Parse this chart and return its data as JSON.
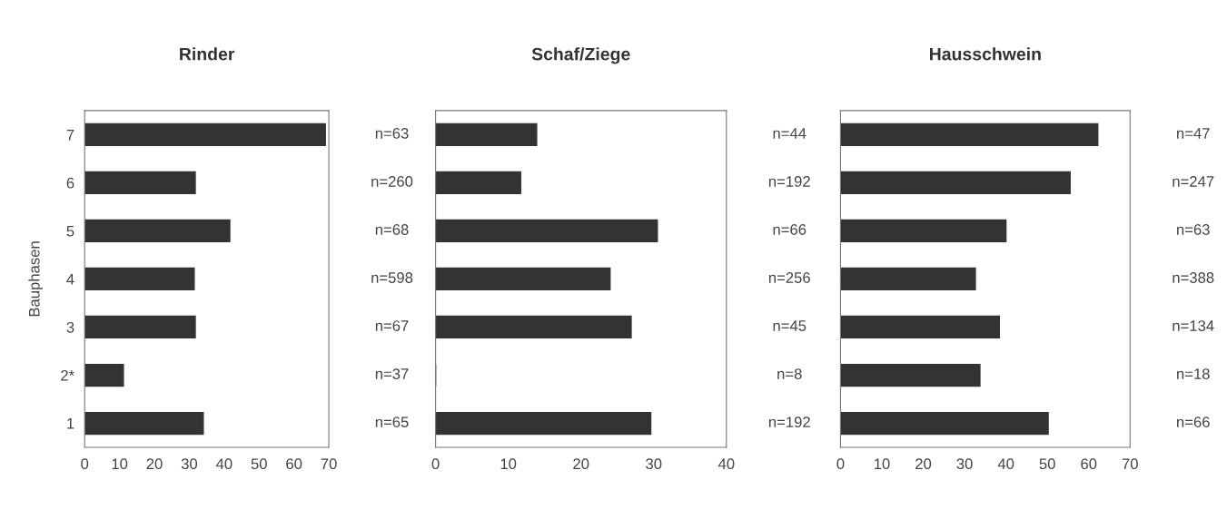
{
  "chart_data": [
    {
      "type": "bar",
      "orientation": "horizontal",
      "title": "Rinder",
      "ylabel": "Bauphasen",
      "categories": [
        "7",
        "6",
        "5",
        "4",
        "3",
        "2*",
        "1"
      ],
      "values": [
        69,
        31.7,
        41.6,
        31.4,
        31.7,
        11.1,
        34.0
      ],
      "color": "#333333",
      "xlim": [
        0,
        70
      ],
      "xticks": [
        0,
        10,
        20,
        30,
        40,
        50,
        60,
        70
      ],
      "grid": false,
      "annotations": [
        "n=63",
        "n=260",
        "n=68",
        "n=598",
        "n=67",
        "n=37",
        "n=65"
      ]
    },
    {
      "type": "bar",
      "orientation": "horizontal",
      "title": "Schaf/Ziege",
      "categories": [
        null,
        null,
        null,
        null,
        null,
        null,
        null
      ],
      "values": [
        13.9,
        11.7,
        30.5,
        24.0,
        26.9,
        0,
        29.6
      ],
      "color": "#333333",
      "xlim": [
        0,
        40
      ],
      "xticks": [
        0,
        10,
        20,
        30,
        40
      ],
      "grid": false,
      "tick_labels": "x",
      "annotations": [
        "n=44",
        "n=192",
        "n=66",
        "n=256",
        "n=45",
        "n=8",
        "n=192"
      ]
    },
    {
      "type": "bar",
      "orientation": "horizontal",
      "title": "Hausschwein",
      "categories": [
        null,
        null,
        null,
        null,
        null,
        null,
        null
      ],
      "values": [
        62.2,
        55.5,
        40.0,
        32.6,
        38.4,
        33.7,
        50.2
      ],
      "color": "#333333",
      "xlim": [
        0,
        70
      ],
      "xticks": [
        0,
        10,
        20,
        30,
        40,
        50,
        60,
        70
      ],
      "grid": false,
      "tick_labels": "x",
      "annotations": [
        "n=47",
        "n=247",
        "n=63",
        "n=388",
        "n=134",
        "n=18",
        "n=66"
      ]
    }
  ]
}
